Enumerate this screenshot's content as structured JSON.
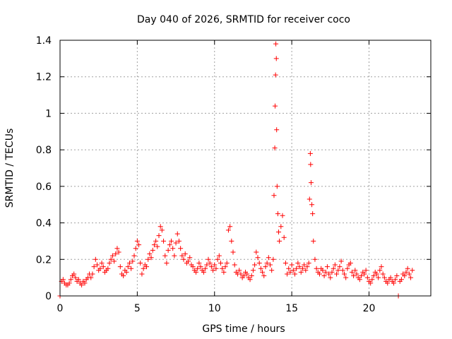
{
  "chart_data": {
    "type": "scatter",
    "title": "Day 040 of 2026, SRMTID for receiver coco",
    "xlabel": "GPS time / hours",
    "ylabel": "SRMTID / TECUs",
    "xlim": [
      0,
      24
    ],
    "ylim": [
      0,
      1.4
    ],
    "xticks": [
      0,
      5,
      10,
      15,
      20
    ],
    "xtick_labels": [
      "0",
      "5",
      "10",
      "15",
      "20"
    ],
    "yticks": [
      0,
      0.2,
      0.4,
      0.6,
      0.8,
      1.0,
      1.2,
      1.4
    ],
    "ytick_labels": [
      "0",
      "0.2",
      "0.4",
      "0.6",
      "0.8",
      "1",
      "1.2",
      "1.4"
    ],
    "grid": true,
    "marker": "+",
    "marker_color": "#ff0000",
    "series": [
      {
        "name": "SRMTID",
        "x": [
          0.0,
          0.1,
          0.2,
          0.3,
          0.4,
          0.5,
          0.6,
          0.7,
          0.8,
          0.9,
          1.0,
          1.1,
          1.2,
          1.3,
          1.4,
          1.5,
          1.6,
          1.7,
          1.8,
          1.9,
          2.0,
          2.1,
          2.2,
          2.3,
          2.4,
          2.5,
          2.6,
          2.7,
          2.8,
          2.9,
          3.0,
          3.1,
          3.2,
          3.3,
          3.4,
          3.5,
          3.6,
          3.7,
          3.8,
          3.9,
          4.0,
          4.1,
          4.2,
          4.3,
          4.4,
          4.5,
          4.6,
          4.7,
          4.8,
          4.9,
          5.0,
          5.1,
          5.2,
          5.3,
          5.4,
          5.5,
          5.6,
          5.7,
          5.8,
          5.9,
          6.0,
          6.1,
          6.2,
          6.3,
          6.4,
          6.5,
          6.6,
          6.7,
          6.8,
          6.9,
          7.0,
          7.1,
          7.2,
          7.3,
          7.4,
          7.5,
          7.6,
          7.7,
          7.8,
          7.9,
          8.0,
          8.1,
          8.2,
          8.3,
          8.4,
          8.5,
          8.6,
          8.7,
          8.8,
          8.9,
          9.0,
          9.1,
          9.2,
          9.3,
          9.4,
          9.5,
          9.6,
          9.7,
          9.8,
          9.9,
          10.0,
          10.1,
          10.2,
          10.3,
          10.4,
          10.5,
          10.6,
          10.7,
          10.8,
          10.9,
          11.0,
          11.1,
          11.2,
          11.3,
          11.4,
          11.5,
          11.6,
          11.7,
          11.8,
          11.9,
          12.0,
          12.1,
          12.2,
          12.3,
          12.4,
          12.5,
          12.6,
          12.7,
          12.8,
          12.9,
          13.0,
          13.1,
          13.2,
          13.3,
          13.4,
          13.5,
          13.6,
          13.7,
          13.8,
          13.85,
          13.9,
          13.92,
          13.95,
          13.97,
          14.0,
          14.02,
          14.05,
          14.1,
          14.15,
          14.2,
          14.3,
          14.4,
          14.5,
          14.6,
          14.7,
          14.8,
          14.9,
          15.0,
          15.1,
          15.2,
          15.3,
          15.4,
          15.5,
          15.6,
          15.7,
          15.8,
          15.9,
          16.0,
          16.1,
          16.15,
          16.2,
          16.22,
          16.25,
          16.3,
          16.35,
          16.4,
          16.5,
          16.6,
          16.7,
          16.8,
          16.9,
          17.0,
          17.1,
          17.2,
          17.3,
          17.4,
          17.5,
          17.6,
          17.7,
          17.8,
          17.9,
          18.0,
          18.1,
          18.2,
          18.3,
          18.4,
          18.5,
          18.6,
          18.7,
          18.8,
          18.9,
          19.0,
          19.1,
          19.2,
          19.3,
          19.4,
          19.5,
          19.6,
          19.7,
          19.8,
          19.9,
          20.0,
          20.1,
          20.2,
          20.3,
          20.4,
          20.5,
          20.6,
          20.7,
          20.8,
          20.9,
          21.0,
          21.1,
          21.2,
          21.3,
          21.4,
          21.5,
          21.6,
          21.7,
          21.8,
          21.9,
          22.0,
          22.1,
          22.2,
          22.3,
          22.4,
          22.5,
          22.6,
          22.7,
          22.8
        ],
        "y": [
          0.0,
          0.08,
          0.09,
          0.07,
          0.06,
          0.06,
          0.07,
          0.09,
          0.11,
          0.12,
          0.1,
          0.08,
          0.09,
          0.07,
          0.06,
          0.08,
          0.07,
          0.09,
          0.1,
          0.12,
          0.1,
          0.12,
          0.16,
          0.2,
          0.17,
          0.14,
          0.15,
          0.18,
          0.16,
          0.13,
          0.14,
          0.15,
          0.18,
          0.2,
          0.22,
          0.19,
          0.23,
          0.26,
          0.24,
          0.16,
          0.12,
          0.11,
          0.14,
          0.13,
          0.16,
          0.18,
          0.15,
          0.19,
          0.22,
          0.26,
          0.3,
          0.28,
          0.18,
          0.12,
          0.15,
          0.17,
          0.16,
          0.2,
          0.23,
          0.21,
          0.25,
          0.28,
          0.3,
          0.27,
          0.33,
          0.38,
          0.36,
          0.3,
          0.22,
          0.18,
          0.25,
          0.28,
          0.3,
          0.26,
          0.22,
          0.29,
          0.34,
          0.3,
          0.26,
          0.22,
          0.2,
          0.23,
          0.18,
          0.19,
          0.21,
          0.17,
          0.16,
          0.14,
          0.13,
          0.15,
          0.18,
          0.16,
          0.14,
          0.13,
          0.15,
          0.17,
          0.2,
          0.18,
          0.16,
          0.14,
          0.17,
          0.15,
          0.2,
          0.22,
          0.18,
          0.15,
          0.13,
          0.16,
          0.18,
          0.36,
          0.38,
          0.3,
          0.24,
          0.17,
          0.13,
          0.12,
          0.14,
          0.12,
          0.1,
          0.11,
          0.13,
          0.12,
          0.1,
          0.09,
          0.11,
          0.14,
          0.17,
          0.24,
          0.21,
          0.18,
          0.15,
          0.13,
          0.11,
          0.16,
          0.18,
          0.21,
          0.17,
          0.14,
          0.2,
          0.55,
          0.81,
          1.04,
          1.21,
          1.38,
          1.3,
          0.91,
          0.6,
          0.45,
          0.35,
          0.3,
          0.38,
          0.44,
          0.32,
          0.18,
          0.12,
          0.15,
          0.13,
          0.17,
          0.14,
          0.12,
          0.15,
          0.18,
          0.16,
          0.13,
          0.15,
          0.17,
          0.14,
          0.16,
          0.18,
          0.53,
          0.78,
          0.72,
          0.62,
          0.5,
          0.45,
          0.3,
          0.2,
          0.15,
          0.13,
          0.12,
          0.15,
          0.14,
          0.11,
          0.13,
          0.16,
          0.12,
          0.1,
          0.13,
          0.15,
          0.17,
          0.12,
          0.14,
          0.16,
          0.19,
          0.14,
          0.12,
          0.1,
          0.15,
          0.17,
          0.18,
          0.13,
          0.11,
          0.14,
          0.12,
          0.1,
          0.09,
          0.11,
          0.13,
          0.12,
          0.14,
          0.1,
          0.08,
          0.07,
          0.09,
          0.11,
          0.13,
          0.12,
          0.1,
          0.14,
          0.16,
          0.12,
          0.1,
          0.08,
          0.07,
          0.09,
          0.1,
          0.08,
          0.07,
          0.09,
          0.11,
          0.0,
          0.08,
          0.09,
          0.12,
          0.11,
          0.13,
          0.15,
          0.12,
          0.1,
          0.14
        ]
      }
    ]
  }
}
